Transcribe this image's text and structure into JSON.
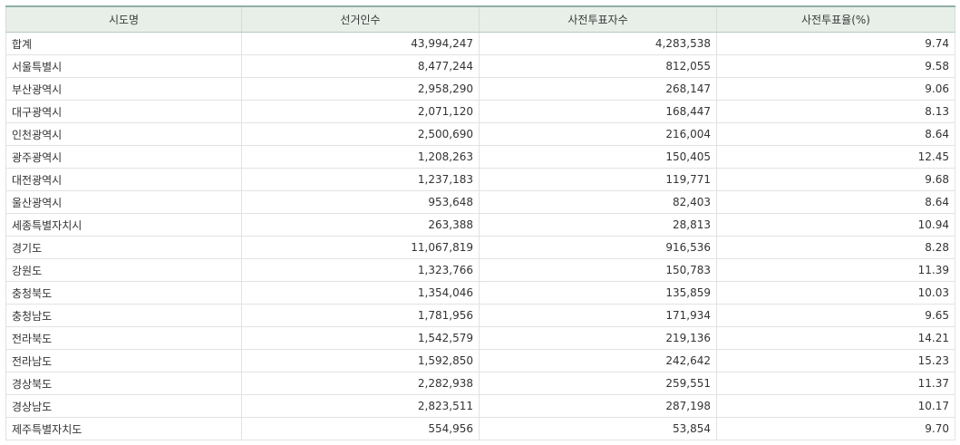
{
  "table": {
    "headers": [
      "시도명",
      "선거인수",
      "사전투표자수",
      "사전투표율(%)"
    ],
    "rows": [
      [
        "합계",
        "43,994,247",
        "4,283,538",
        "9.74"
      ],
      [
        "서울특별시",
        "8,477,244",
        "812,055",
        "9.58"
      ],
      [
        "부산광역시",
        "2,958,290",
        "268,147",
        "9.06"
      ],
      [
        "대구광역시",
        "2,071,120",
        "168,447",
        "8.13"
      ],
      [
        "인천광역시",
        "2,500,690",
        "216,004",
        "8.64"
      ],
      [
        "광주광역시",
        "1,208,263",
        "150,405",
        "12.45"
      ],
      [
        "대전광역시",
        "1,237,183",
        "119,771",
        "9.68"
      ],
      [
        "울산광역시",
        "953,648",
        "82,403",
        "8.64"
      ],
      [
        "세종특별자치시",
        "263,388",
        "28,813",
        "10.94"
      ],
      [
        "경기도",
        "11,067,819",
        "916,536",
        "8.28"
      ],
      [
        "강원도",
        "1,323,766",
        "150,783",
        "11.39"
      ],
      [
        "충청북도",
        "1,354,046",
        "135,859",
        "10.03"
      ],
      [
        "충청남도",
        "1,781,956",
        "171,934",
        "9.65"
      ],
      [
        "전라북도",
        "1,542,579",
        "219,136",
        "14.21"
      ],
      [
        "전라남도",
        "1,592,850",
        "242,642",
        "15.23"
      ],
      [
        "경상북도",
        "2,282,938",
        "259,551",
        "11.37"
      ],
      [
        "경상남도",
        "2,823,511",
        "287,198",
        "10.17"
      ],
      [
        "제주특별자치도",
        "554,956",
        "53,854",
        "9.70"
      ]
    ]
  }
}
